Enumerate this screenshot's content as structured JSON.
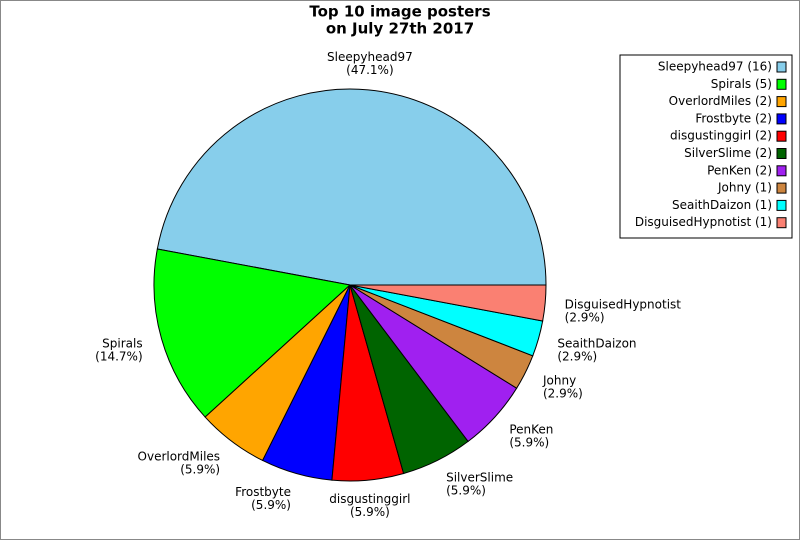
{
  "chart_data": {
    "type": "pie",
    "title": [
      "Top 10 image posters",
      "on July 27th 2017"
    ],
    "categories": [
      "Sleepyhead97",
      "Spirals",
      "OverlordMiles",
      "Frostbyte",
      "disgustinggirl",
      "SilverSlime",
      "PenKen",
      "Johny",
      "SeaithDaizon",
      "DisguisedHypnotist"
    ],
    "values": [
      16,
      5,
      2,
      2,
      2,
      2,
      2,
      1,
      1,
      1
    ],
    "percent_labels": [
      "(47.1%)",
      "(14.7%)",
      "(5.9%)",
      "(5.9%)",
      "(5.9%)",
      "(5.9%)",
      "(5.9%)",
      "(2.9%)",
      "(2.9%)",
      "(2.9%)"
    ],
    "legend_labels": [
      "Sleepyhead97 (16)",
      "Spirals (5)",
      "OverlordMiles (2)",
      "Frostbyte (2)",
      "disgustinggirl (2)",
      "SilverSlime (2)",
      "PenKen (2)",
      "Johny (1)",
      "SeaithDaizon (1)",
      "DisguisedHypnotist (1)"
    ],
    "colors": [
      "#87ceeb",
      "#00ff00",
      "#ffa500",
      "#0000ff",
      "#ff0000",
      "#006400",
      "#a020f0",
      "#cd853f",
      "#00ffff",
      "#fa8072"
    ],
    "legend": "upper right"
  }
}
